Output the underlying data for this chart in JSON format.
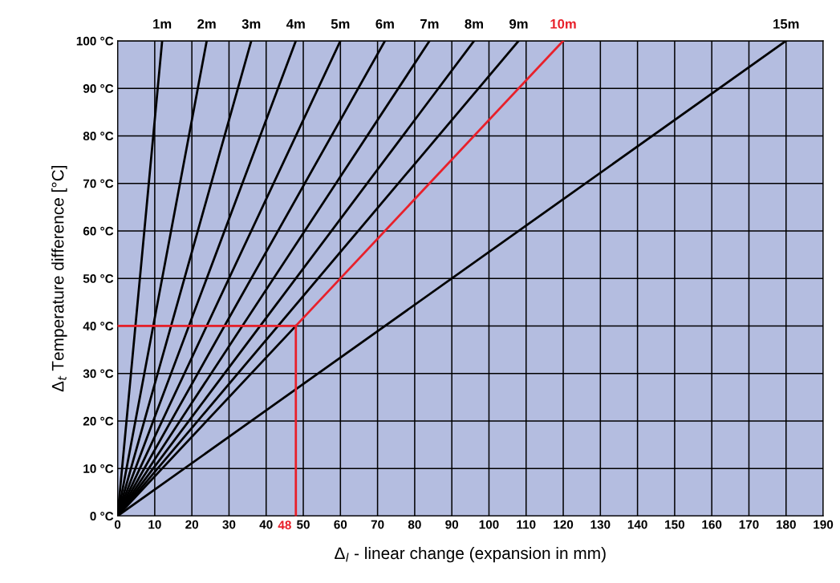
{
  "chart_data": {
    "type": "line",
    "xlabel": "Δ$_{l}$ - linear change (expansion in mm)",
    "ylabel": "Δ$_{t}$ Temperature difference [°C]",
    "xlim": [
      0,
      190
    ],
    "ylim": [
      0,
      100
    ],
    "xticks": [
      0,
      10,
      20,
      30,
      40,
      50,
      60,
      70,
      80,
      90,
      100,
      110,
      120,
      130,
      140,
      150,
      160,
      170,
      180,
      190
    ],
    "yticks": [
      {
        "value": 0,
        "label": "0 °C"
      },
      {
        "value": 10,
        "label": "10 °C"
      },
      {
        "value": 20,
        "label": "20 °C"
      },
      {
        "value": 30,
        "label": "30 °C"
      },
      {
        "value": 40,
        "label": "40 °C"
      },
      {
        "value": 50,
        "label": "50 °C"
      },
      {
        "value": 60,
        "label": "60 °C"
      },
      {
        "value": 70,
        "label": "70 °C"
      },
      {
        "value": 80,
        "label": "80 °C"
      },
      {
        "value": 90,
        "label": "90 °C"
      },
      {
        "value": 100,
        "label": "100 °C"
      }
    ],
    "grid": true,
    "marker": "none",
    "line_style": "solid",
    "series": [
      {
        "name": "1m",
        "color": "#000000",
        "x": [
          0,
          12
        ],
        "values": [
          0,
          100
        ]
      },
      {
        "name": "2m",
        "color": "#000000",
        "x": [
          0,
          24
        ],
        "values": [
          0,
          100
        ]
      },
      {
        "name": "3m",
        "color": "#000000",
        "x": [
          0,
          36
        ],
        "values": [
          0,
          100
        ]
      },
      {
        "name": "4m",
        "color": "#000000",
        "x": [
          0,
          48
        ],
        "values": [
          0,
          100
        ]
      },
      {
        "name": "5m",
        "color": "#000000",
        "x": [
          0,
          60
        ],
        "values": [
          0,
          100
        ]
      },
      {
        "name": "6m",
        "color": "#000000",
        "x": [
          0,
          72
        ],
        "values": [
          0,
          100
        ]
      },
      {
        "name": "7m",
        "color": "#000000",
        "x": [
          0,
          84
        ],
        "values": [
          0,
          100
        ]
      },
      {
        "name": "8m",
        "color": "#000000",
        "x": [
          0,
          96
        ],
        "values": [
          0,
          100
        ]
      },
      {
        "name": "9m",
        "color": "#000000",
        "x": [
          0,
          108
        ],
        "values": [
          0,
          100
        ]
      },
      {
        "color": "#000000",
        "x": [
          0,
          48
        ],
        "values": [
          0,
          40
        ]
      },
      {
        "name": "10m",
        "color": "#e8202a",
        "x": [
          48,
          120
        ],
        "values": [
          40,
          100
        ]
      },
      {
        "name": "15m",
        "color": "#000000",
        "x": [
          0,
          180
        ],
        "values": [
          0,
          100
        ]
      },
      {
        "color": "#e8202a",
        "x": [
          0,
          48,
          48
        ],
        "values": [
          40,
          40,
          0
        ]
      }
    ],
    "annotations": [
      {
        "text": "48",
        "x": 48,
        "y": 0
      }
    ]
  }
}
